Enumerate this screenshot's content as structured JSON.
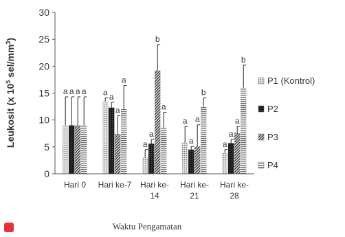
{
  "chart_data": {
    "type": "bar",
    "ylabel_main": "Leukosit (x 10",
    "ylabel_sup1": "5",
    "ylabel_mid": " sel/mm",
    "ylabel_sup2": "3",
    "ylabel_end": ")",
    "xlabel": "Waktu Pengamatan",
    "ylim": [
      0,
      30
    ],
    "yticks": [
      "0",
      "5",
      "10",
      "15",
      "20",
      "25",
      "30"
    ],
    "legend_position": "right",
    "categories": [
      {
        "line1": "Hari 0",
        "line2": ""
      },
      {
        "line1": "Hari ke-7",
        "line2": ""
      },
      {
        "line1": "Hari ke-",
        "line2": "14"
      },
      {
        "line1": "Hari ke-",
        "line2": "21"
      },
      {
        "line1": "Hari ke-",
        "line2": "28"
      }
    ],
    "series": [
      {
        "name": "P1 (Kontrol)",
        "pattern": "dots",
        "values": [
          9.0,
          13.5,
          3.0,
          5.8,
          3.9
        ],
        "errors": [
          5.3,
          0.6,
          1.5,
          3.0,
          0.6
        ],
        "letters": [
          "a",
          "a",
          "a",
          "a",
          "a"
        ]
      },
      {
        "name": "P2",
        "pattern": "dark",
        "values": [
          9.0,
          12.3,
          5.6,
          4.5,
          5.7
        ],
        "errors": [
          5.3,
          1.0,
          0.8,
          0.6,
          0.7
        ],
        "letters": [
          "a",
          "a",
          "a",
          "a",
          "a"
        ]
      },
      {
        "name": "P3",
        "pattern": "diag",
        "values": [
          9.0,
          7.4,
          19.2,
          5.1,
          7.6
        ],
        "errors": [
          5.3,
          3.4,
          4.8,
          4.0,
          1.2
        ],
        "letters": [
          "a",
          "a",
          "b",
          "a",
          "a"
        ]
      },
      {
        "name": "P4",
        "pattern": "hlines",
        "values": [
          9.0,
          12.0,
          8.6,
          12.5,
          16.0
        ],
        "errors": [
          5.3,
          4.4,
          2.8,
          1.6,
          4.2
        ],
        "letters": [
          "a",
          "a",
          "a",
          "b",
          "b"
        ]
      }
    ]
  }
}
